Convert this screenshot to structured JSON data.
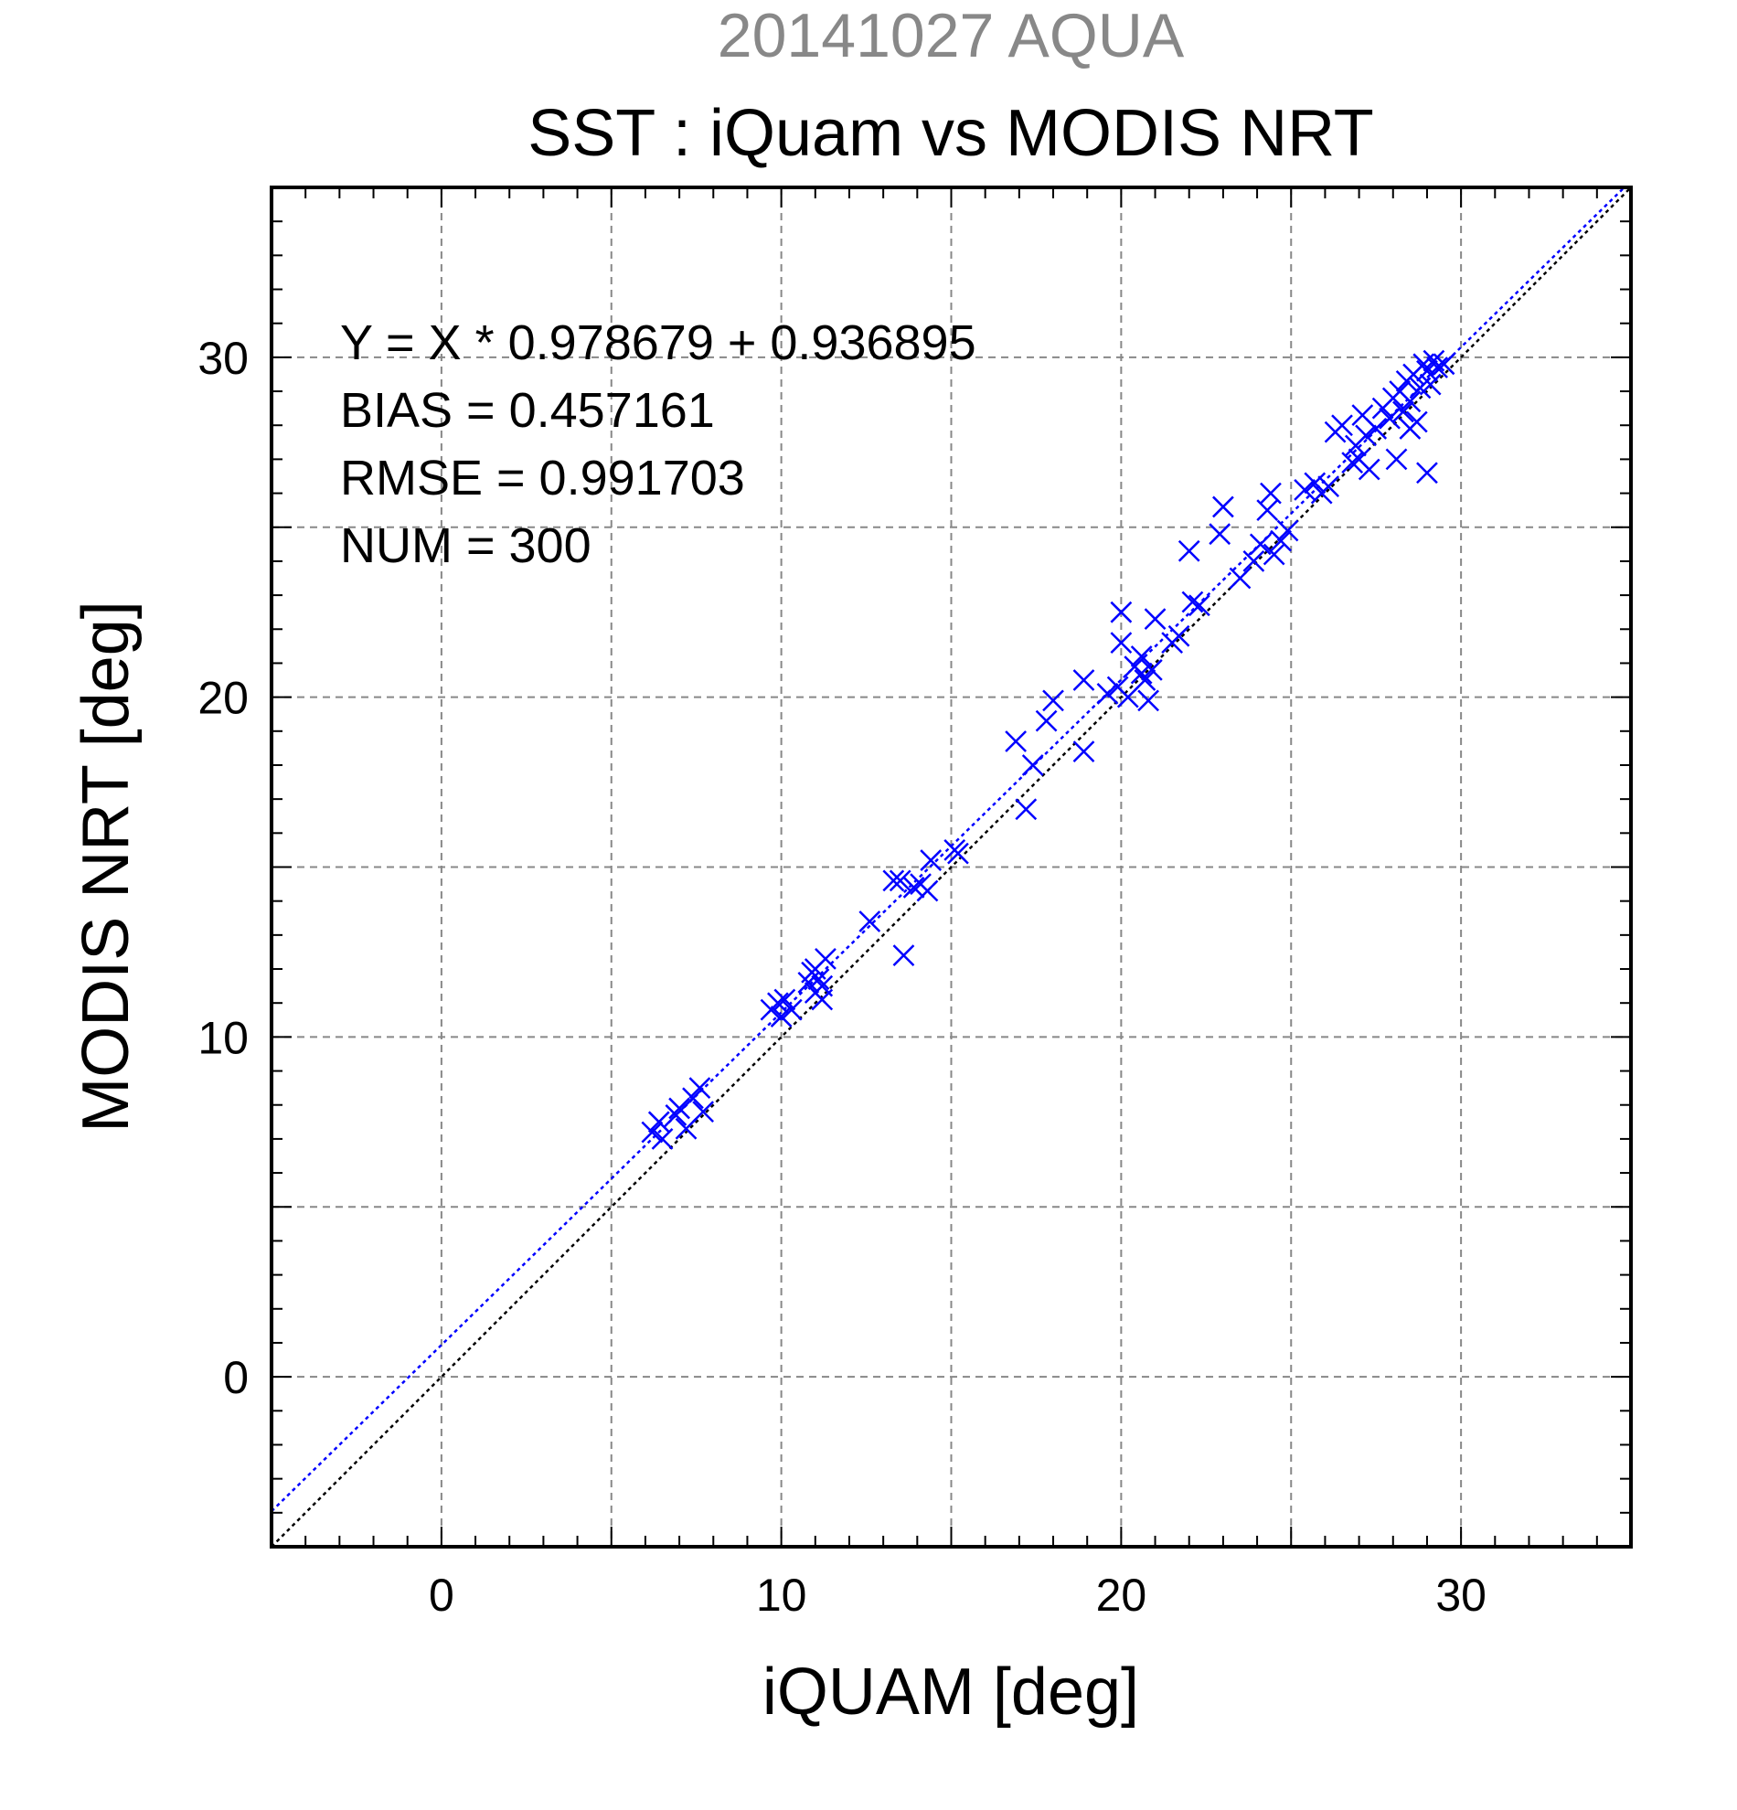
{
  "chart_data": {
    "type": "scatter",
    "supertitle": "20141027 AQUA",
    "title": "SST : iQuam vs MODIS NRT",
    "xlabel": "iQUAM [deg]",
    "ylabel": "MODIS NRT [deg]",
    "xlim": [
      -5,
      35
    ],
    "ylim": [
      -5,
      35
    ],
    "xticks": [
      0,
      10,
      20,
      30
    ],
    "yticks": [
      0,
      10,
      20,
      30
    ],
    "tick_labels": {
      "x": [
        "0",
        "10",
        "20",
        "30"
      ],
      "y": [
        "0",
        "10",
        "20",
        "30"
      ]
    },
    "grid": true,
    "stats": {
      "equation": "Y = X * 0.978679 + 0.936895",
      "bias": "BIAS = 0.457161",
      "rmse": "RMSE = 0.991703",
      "num": "NUM = 300"
    },
    "lines": [
      {
        "kind": "fit",
        "slope": 0.978679,
        "intercept": 0.936895,
        "color": "#0000ff",
        "style": "dotted"
      },
      {
        "kind": "one-to-one",
        "slope": 1,
        "intercept": 0,
        "color": "#000000",
        "style": "dotted"
      }
    ],
    "marker": {
      "symbol": "x",
      "color": "#0000ff"
    },
    "points": [
      [
        6.2,
        7.2
      ],
      [
        6.4,
        7.5
      ],
      [
        6.5,
        7.0
      ],
      [
        6.9,
        7.7
      ],
      [
        7.0,
        7.9
      ],
      [
        7.2,
        7.3
      ],
      [
        7.4,
        8.2
      ],
      [
        7.6,
        8.5
      ],
      [
        7.7,
        7.8
      ],
      [
        9.7,
        10.8
      ],
      [
        9.9,
        11.0
      ],
      [
        10.0,
        10.6
      ],
      [
        10.1,
        11.1
      ],
      [
        10.3,
        10.8
      ],
      [
        10.8,
        11.6
      ],
      [
        10.9,
        11.9
      ],
      [
        11.0,
        11.3
      ],
      [
        11.1,
        11.7
      ],
      [
        11.2,
        11.1
      ],
      [
        11.3,
        12.3
      ],
      [
        11.0,
        12.0
      ],
      [
        11.2,
        11.5
      ],
      [
        12.6,
        13.4
      ],
      [
        13.3,
        14.6
      ],
      [
        13.5,
        14.6
      ],
      [
        13.6,
        12.4
      ],
      [
        13.9,
        14.4
      ],
      [
        14.1,
        14.5
      ],
      [
        14.3,
        14.3
      ],
      [
        14.4,
        15.2
      ],
      [
        15.1,
        15.5
      ],
      [
        15.2,
        15.4
      ],
      [
        16.9,
        18.7
      ],
      [
        17.2,
        16.7
      ],
      [
        17.4,
        18.0
      ],
      [
        17.8,
        19.3
      ],
      [
        18.0,
        19.9
      ],
      [
        18.9,
        18.4
      ],
      [
        18.9,
        20.5
      ],
      [
        19.6,
        20.1
      ],
      [
        19.9,
        20.3
      ],
      [
        20.0,
        21.6
      ],
      [
        20.0,
        22.5
      ],
      [
        20.2,
        20.0
      ],
      [
        20.4,
        20.9
      ],
      [
        20.6,
        21.2
      ],
      [
        20.7,
        20.5
      ],
      [
        20.8,
        19.9
      ],
      [
        20.9,
        20.8
      ],
      [
        21.0,
        22.3
      ],
      [
        20.6,
        20.7
      ],
      [
        21.5,
        21.6
      ],
      [
        21.7,
        21.8
      ],
      [
        22.0,
        24.3
      ],
      [
        22.1,
        22.8
      ],
      [
        22.3,
        22.7
      ],
      [
        22.9,
        24.8
      ],
      [
        23.0,
        25.6
      ],
      [
        23.5,
        23.5
      ],
      [
        23.9,
        24.0
      ],
      [
        24.1,
        24.5
      ],
      [
        24.3,
        25.5
      ],
      [
        24.4,
        26.0
      ],
      [
        24.5,
        24.2
      ],
      [
        24.7,
        24.6
      ],
      [
        24.9,
        24.9
      ],
      [
        25.4,
        26.1
      ],
      [
        25.7,
        26.3
      ],
      [
        25.9,
        26.0
      ],
      [
        26.1,
        26.2
      ],
      [
        26.3,
        27.8
      ],
      [
        26.5,
        28.0
      ],
      [
        26.8,
        26.9
      ],
      [
        26.9,
        27.4
      ],
      [
        27.0,
        27.0
      ],
      [
        27.1,
        28.3
      ],
      [
        27.2,
        27.7
      ],
      [
        27.3,
        26.7
      ],
      [
        27.5,
        27.9
      ],
      [
        27.7,
        28.5
      ],
      [
        27.9,
        28.2
      ],
      [
        28.0,
        28.8
      ],
      [
        28.1,
        27.0
      ],
      [
        28.2,
        29.0
      ],
      [
        28.3,
        28.4
      ],
      [
        28.4,
        29.3
      ],
      [
        28.5,
        27.9
      ],
      [
        28.5,
        28.7
      ],
      [
        28.6,
        29.5
      ],
      [
        28.7,
        28.1
      ],
      [
        28.8,
        29.1
      ],
      [
        28.9,
        29.8
      ],
      [
        29.0,
        26.6
      ],
      [
        29.0,
        29.6
      ],
      [
        29.1,
        29.2
      ],
      [
        29.2,
        29.9
      ],
      [
        29.3,
        29.7
      ],
      [
        29.5,
        29.8
      ]
    ]
  }
}
